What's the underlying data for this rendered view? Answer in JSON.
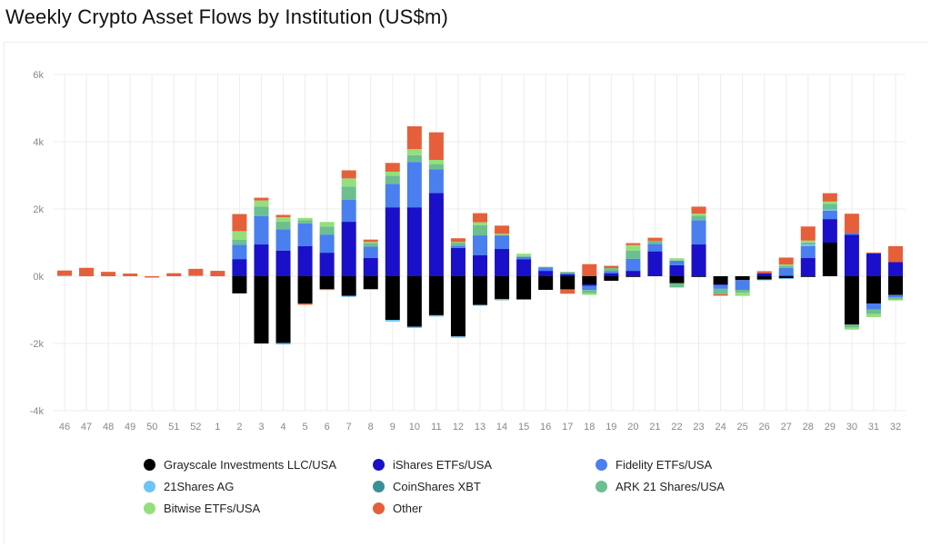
{
  "chart_data": {
    "type": "bar",
    "stacked": true,
    "title": "Weekly Crypto Asset Flows by Institution (US$m)",
    "xlabel": "",
    "ylabel": "",
    "ylim": [
      -4000,
      6000
    ],
    "yticks": [
      -4000,
      -2000,
      0,
      2000,
      4000,
      6000
    ],
    "ytick_labels": [
      "-4k",
      "-2k",
      "0k",
      "2k",
      "4k",
      "6k"
    ],
    "grid": true,
    "legend_position": "bottom",
    "categories": [
      "46",
      "47",
      "48",
      "49",
      "50",
      "51",
      "52",
      "1",
      "2",
      "3",
      "4",
      "5",
      "6",
      "7",
      "8",
      "9",
      "10",
      "11",
      "12",
      "13",
      "14",
      "15",
      "16",
      "17",
      "18",
      "19",
      "20",
      "21",
      "22",
      "23",
      "24",
      "25",
      "26",
      "27",
      "28",
      "29",
      "30",
      "31",
      "32"
    ],
    "series": [
      {
        "name": "Grayscale Investments LLC/USA",
        "color": "#000000",
        "values": [
          0,
          0,
          0,
          0,
          0,
          0,
          0,
          0,
          -510,
          -2000,
          -1990,
          -810,
          -380,
          -585,
          -380,
          -1300,
          -1500,
          -1160,
          -1790,
          -855,
          -675,
          -690,
          -405,
          -390,
          -245,
          -135,
          -20,
          0,
          -210,
          -20,
          -245,
          -115,
          -100,
          -60,
          -15,
          1000,
          -1440,
          -810,
          -560
        ]
      },
      {
        "name": "iShares ETFs/USA",
        "color": "#1a10c9",
        "values": [
          0,
          0,
          0,
          0,
          0,
          0,
          0,
          0,
          510,
          945,
          765,
          900,
          700,
          1620,
          540,
          2050,
          2050,
          2475,
          840,
          630,
          810,
          500,
          160,
          60,
          -45,
          90,
          160,
          740,
          330,
          945,
          -20,
          0,
          90,
          20,
          540,
          700,
          1230,
          675,
          420
        ]
      },
      {
        "name": "Fidelity ETFs/USA",
        "color": "#4a7ff0",
        "values": [
          0,
          0,
          0,
          0,
          0,
          0,
          0,
          0,
          430,
          840,
          630,
          675,
          540,
          650,
          340,
          700,
          1350,
          700,
          70,
          585,
          405,
          80,
          100,
          45,
          -120,
          60,
          360,
          225,
          135,
          720,
          -110,
          -290,
          0,
          225,
          360,
          250,
          55,
          -180,
          -70
        ]
      },
      {
        "name": "21Shares AG",
        "color": "#6ec4f5",
        "values": [
          20,
          0,
          0,
          0,
          0,
          0,
          20,
          0,
          0,
          0,
          -40,
          0,
          0,
          -30,
          -25,
          -50,
          -40,
          -40,
          -40,
          -20,
          0,
          0,
          0,
          0,
          0,
          0,
          0,
          0,
          0,
          0,
          0,
          0,
          -20,
          -20,
          45,
          30,
          0,
          0,
          0
        ]
      },
      {
        "name": "CoinShares XBT",
        "color": "#3b8f96",
        "values": [
          0,
          0,
          0,
          0,
          0,
          0,
          0,
          0,
          0,
          0,
          0,
          0,
          0,
          0,
          0,
          0,
          0,
          0,
          0,
          0,
          0,
          0,
          0,
          0,
          0,
          0,
          0,
          0,
          0,
          0,
          0,
          0,
          0,
          0,
          0,
          0,
          0,
          0,
          0
        ]
      },
      {
        "name": "ARK 21 Shares/USA",
        "color": "#6cbf8e",
        "values": [
          0,
          0,
          0,
          0,
          0,
          0,
          0,
          0,
          150,
          290,
          225,
          90,
          240,
          400,
          110,
          240,
          200,
          160,
          90,
          300,
          -40,
          0,
          20,
          0,
          -90,
          90,
          245,
          90,
          -125,
          135,
          -160,
          -80,
          0,
          70,
          60,
          170,
          -90,
          -135,
          -60
        ]
      },
      {
        "name": "Bitwise ETFs/USA",
        "color": "#93e07a",
        "values": [
          0,
          0,
          0,
          0,
          0,
          0,
          0,
          0,
          250,
          180,
          135,
          70,
          135,
          240,
          30,
          120,
          180,
          125,
          20,
          90,
          45,
          90,
          0,
          30,
          -55,
          0,
          160,
          0,
          70,
          60,
          0,
          -100,
          0,
          35,
          55,
          70,
          -60,
          -90,
          -30
        ]
      },
      {
        "name": "Other",
        "color": "#e5603a",
        "values": [
          150,
          250,
          130,
          80,
          -40,
          90,
          200,
          160,
          510,
          80,
          70,
          -40,
          -30,
          240,
          70,
          260,
          680,
          820,
          110,
          270,
          245,
          0,
          0,
          -130,
          360,
          70,
          60,
          90,
          0,
          210,
          -45,
          0,
          60,
          205,
          420,
          250,
          575,
          30,
          475
        ]
      }
    ]
  }
}
